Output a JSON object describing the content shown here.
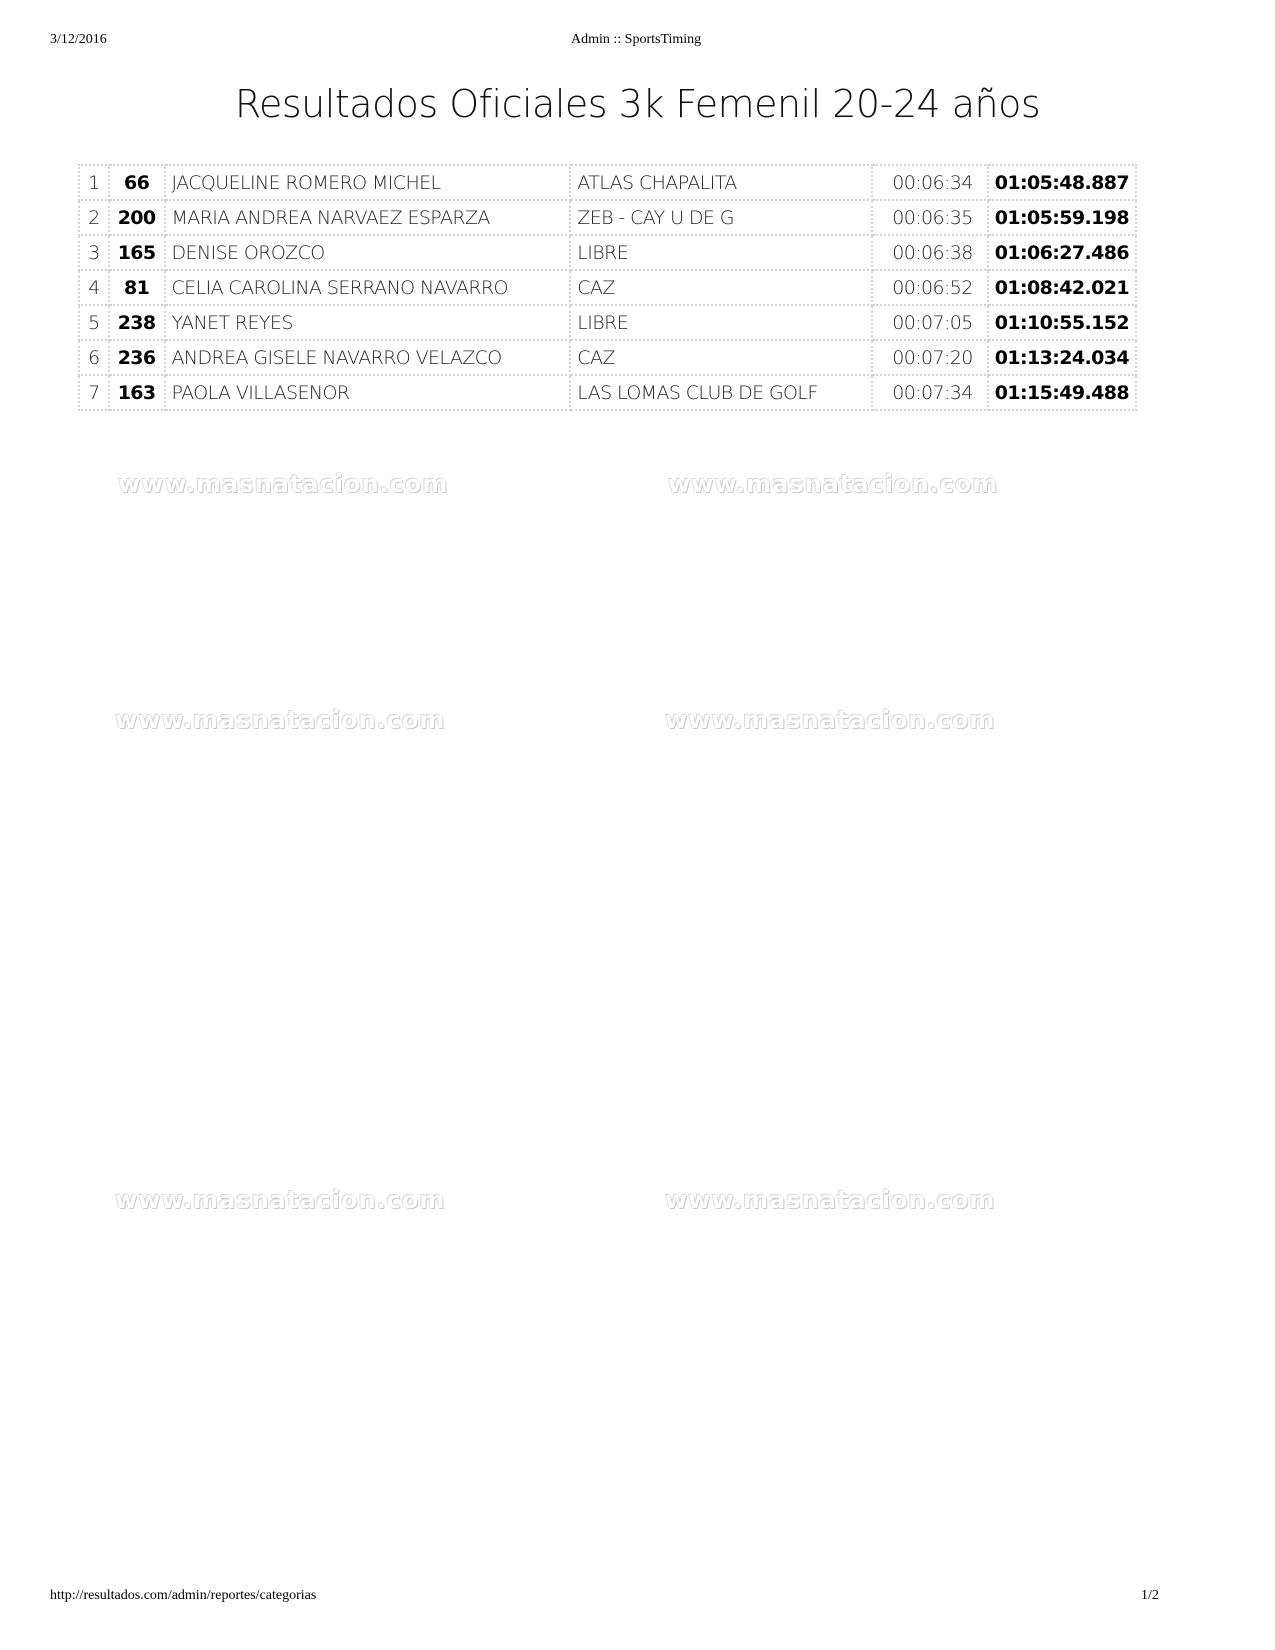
{
  "header": {
    "date": "3/12/2016",
    "title": "Admin :: SportsTiming"
  },
  "page_title": "Resultados Oficiales 3k Femenil 20-24 años",
  "results": [
    {
      "pos": "1",
      "bib": "66",
      "name": "JACQUELINE ROMERO MICHEL",
      "club": "ATLAS CHAPALITA",
      "pace": "00:06:34",
      "time": "01:05:48.887"
    },
    {
      "pos": "2",
      "bib": "200",
      "name": "MARIA ANDREA NARVAEZ ESPARZA",
      "club": "ZEB - CAY U DE G",
      "pace": "00:06:35",
      "time": "01:05:59.198"
    },
    {
      "pos": "3",
      "bib": "165",
      "name": "DENISE OROZCO",
      "club": "LIBRE",
      "pace": "00:06:38",
      "time": "01:06:27.486"
    },
    {
      "pos": "4",
      "bib": "81",
      "name": "CELIA CAROLINA SERRANO NAVARRO",
      "club": "CAZ",
      "pace": "00:06:52",
      "time": "01:08:42.021"
    },
    {
      "pos": "5",
      "bib": "238",
      "name": "YANET REYES",
      "club": "LIBRE",
      "pace": "00:07:05",
      "time": "01:10:55.152"
    },
    {
      "pos": "6",
      "bib": "236",
      "name": "ANDREA GISELE NAVARRO VELAZCO",
      "club": "CAZ",
      "pace": "00:07:20",
      "time": "01:13:24.034"
    },
    {
      "pos": "7",
      "bib": "163",
      "name": "PAOLA VILLASENOR",
      "club": "LAS LOMAS CLUB DE GOLF",
      "pace": "00:07:34",
      "time": "01:15:49.488"
    }
  ],
  "watermark": "www.masnatacion.com",
  "footer": {
    "url": "http://resultados.com/admin/reportes/categorias",
    "page": "1/2"
  }
}
